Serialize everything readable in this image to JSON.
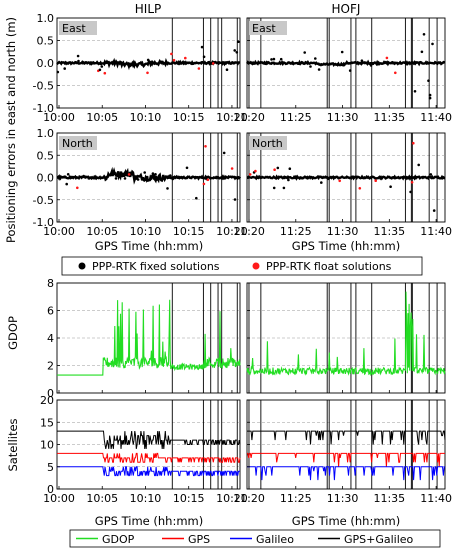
{
  "chart_data": {
    "type": "multi-panel line/scatter",
    "column_titles": [
      "HILP",
      "HOFJ"
    ],
    "x_axis": {
      "label": "GPS Time (hh:mm)",
      "ticks_left": [
        "10:00",
        "10:05",
        "10:10",
        "10:15",
        "10:20"
      ],
      "ticks_right": [
        "11:20",
        "11:25",
        "11:30",
        "11:35",
        "11:40"
      ]
    },
    "positioning_errors": {
      "ylabel": "Positioning errors in east and north (m)",
      "ylim": [
        -1.0,
        1.0
      ],
      "yticks": [
        "1.0",
        "0.5",
        "0.0",
        "-0.5",
        "-1.0"
      ],
      "panels": [
        {
          "tag": "East"
        },
        {
          "tag": "North"
        }
      ],
      "legend": [
        {
          "label": "PPP-RTK fixed solutions",
          "color": "#000000"
        },
        {
          "label": "PPP-RTK float solutions",
          "color": "#ff1a1a"
        }
      ]
    },
    "gdop": {
      "ylabel": "GDOP",
      "ylim": [
        0,
        8
      ],
      "yticks": [
        "8",
        "6",
        "4",
        "2",
        "0"
      ],
      "color": "#22dd22",
      "baseline_left": 1.3,
      "baseline_right": 1.6
    },
    "satellites": {
      "ylabel": "Satellites",
      "ylim": [
        0,
        20
      ],
      "yticks": [
        "20",
        "15",
        "10",
        "5",
        "0"
      ],
      "series": [
        {
          "name": "GPS",
          "color": "#ff0000",
          "baseline": 8
        },
        {
          "name": "Galileo",
          "color": "#0000ff",
          "baseline": 5
        },
        {
          "name": "GPS+Galileo",
          "color": "#000000",
          "baseline": 13
        }
      ]
    },
    "bottom_legend": [
      {
        "label": "GDOP",
        "color": "#22dd22"
      },
      {
        "label": "GPS",
        "color": "#ff0000"
      },
      {
        "label": "Galileo",
        "color": "#0000ff"
      },
      {
        "label": "GPS+Galileo",
        "color": "#000000"
      }
    ]
  }
}
